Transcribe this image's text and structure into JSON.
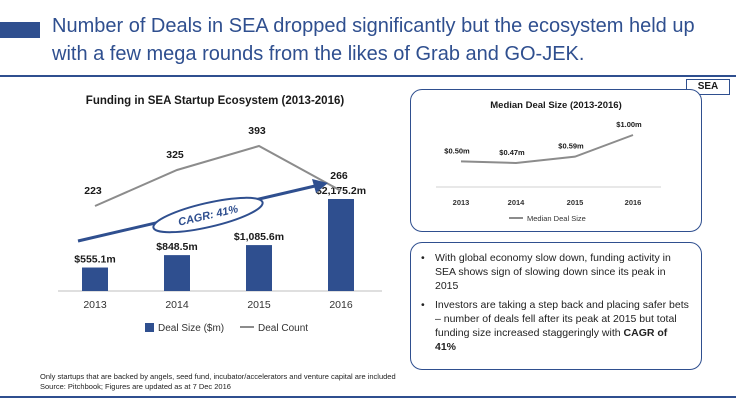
{
  "headline": "Number of Deals in SEA dropped significantly but the ecosystem held up with a few mega rounds from the likes of Grab and GO-JEK.",
  "region_tag": "SEA",
  "colors": {
    "accent": "#2f4f8f",
    "bar": "#2f4f8f",
    "line": "#8c8c8c"
  },
  "chart_data": [
    {
      "type": "bar+line",
      "title": "Funding in SEA Startup Ecosystem (2013-2016)",
      "categories": [
        "2013",
        "2014",
        "2015",
        "2016"
      ],
      "series": [
        {
          "name": "Deal Size ($m)",
          "kind": "bar",
          "values": [
            555.1,
            848.5,
            1085.6,
            2175.2
          ],
          "labels": [
            "$555.1m",
            "$848.5m",
            "$1,085.6m",
            "$2,175.2m"
          ]
        },
        {
          "name": "Deal Count",
          "kind": "line",
          "values": [
            223,
            325,
            393,
            266
          ],
          "labels": [
            "223",
            "325",
            "393",
            "266"
          ]
        }
      ],
      "annotation": "CAGR: 41%",
      "legend": [
        "Deal Size ($m)",
        "Deal Count"
      ],
      "legend_position": "bottom"
    },
    {
      "type": "line",
      "title": "Median Deal Size (2013-2016)",
      "categories": [
        "2013",
        "2014",
        "2015",
        "2016"
      ],
      "series": [
        {
          "name": "Median Deal Size",
          "values": [
            0.5,
            0.47,
            0.59,
            1.0
          ],
          "labels": [
            "$0.50m",
            "$0.47m",
            "$0.59m",
            "$1.00m"
          ]
        }
      ],
      "legend": [
        "Median Deal Size"
      ],
      "legend_position": "bottom"
    }
  ],
  "bullets": {
    "b1": "With global economy slow down, funding activity in SEA shows sign of slowing down since its peak in 2015",
    "b2_pre": "Investors are taking a step back and placing safer bets – number of deals fell after its peak at 2015 but total funding size increased staggeringly with ",
    "b2_bold": "CAGR of 41%"
  },
  "footnote": {
    "line1": "Only startups that are backed by angels, seed fund, incubator/accelerators and venture capital are included",
    "line2": "Source: Pitchbook; Figures are updated as at 7 Dec 2016"
  }
}
